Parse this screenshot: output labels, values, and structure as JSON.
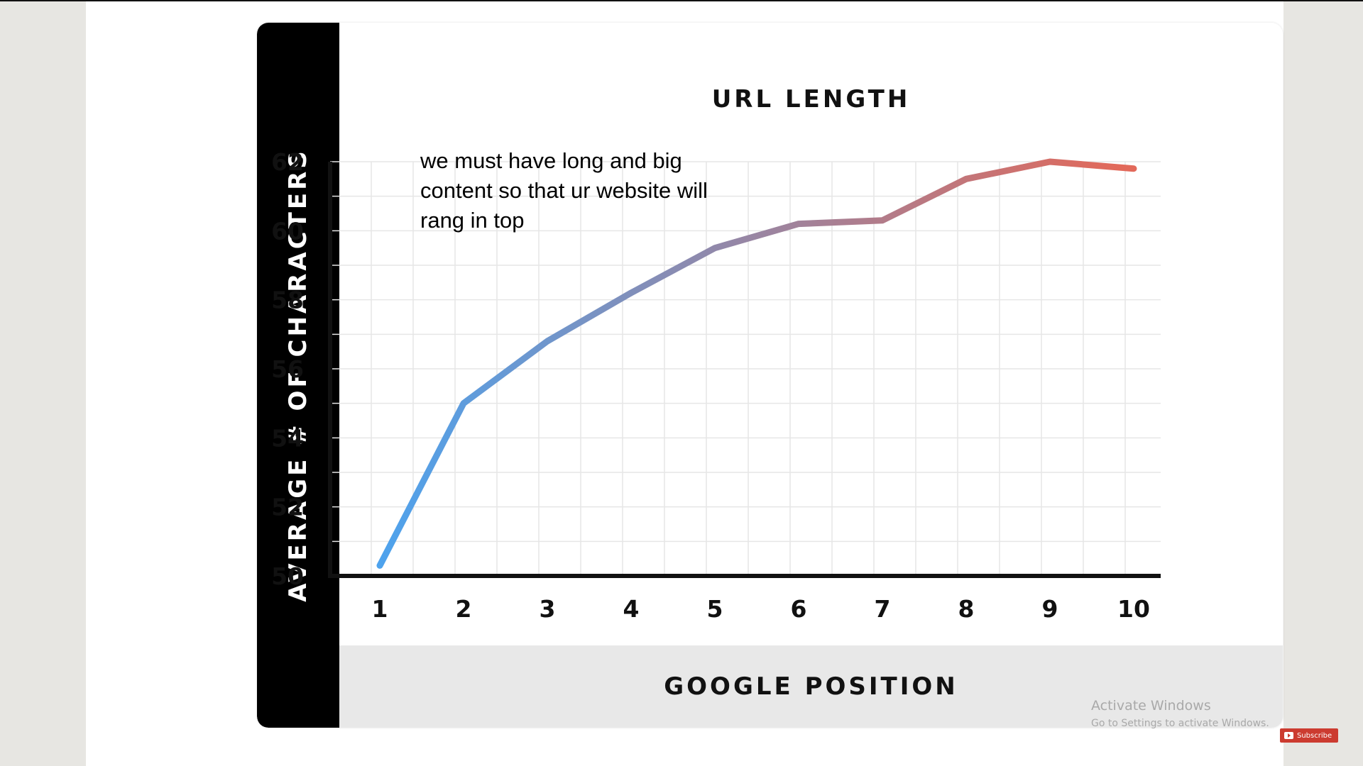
{
  "chart_data": {
    "type": "line",
    "title": "URL LENGTH",
    "xlabel": "GOOGLE POSITION",
    "ylabel": "AVERAGE # OF CHARACTERS",
    "x": [
      1,
      2,
      3,
      4,
      5,
      6,
      7,
      8,
      9,
      10
    ],
    "y_ticks": [
      50,
      52,
      54,
      56,
      58,
      60,
      62
    ],
    "ylim": [
      50,
      62
    ],
    "grid": true,
    "series": [
      {
        "values": [
          50.3,
          55.0,
          56.8,
          58.2,
          59.5,
          60.2,
          60.3,
          61.5,
          62.0,
          61.8
        ]
      }
    ],
    "line_gradient": [
      "#4da3ee",
      "#e2695a"
    ]
  },
  "annotation": {
    "line1": "we must have long and big",
    "line2": "content so that ur website will",
    "line3": "rang in top"
  },
  "watermark": {
    "title": "Activate Windows",
    "subtitle": "Go to Settings to activate Windows."
  },
  "subscribe_label": "Subscribe"
}
